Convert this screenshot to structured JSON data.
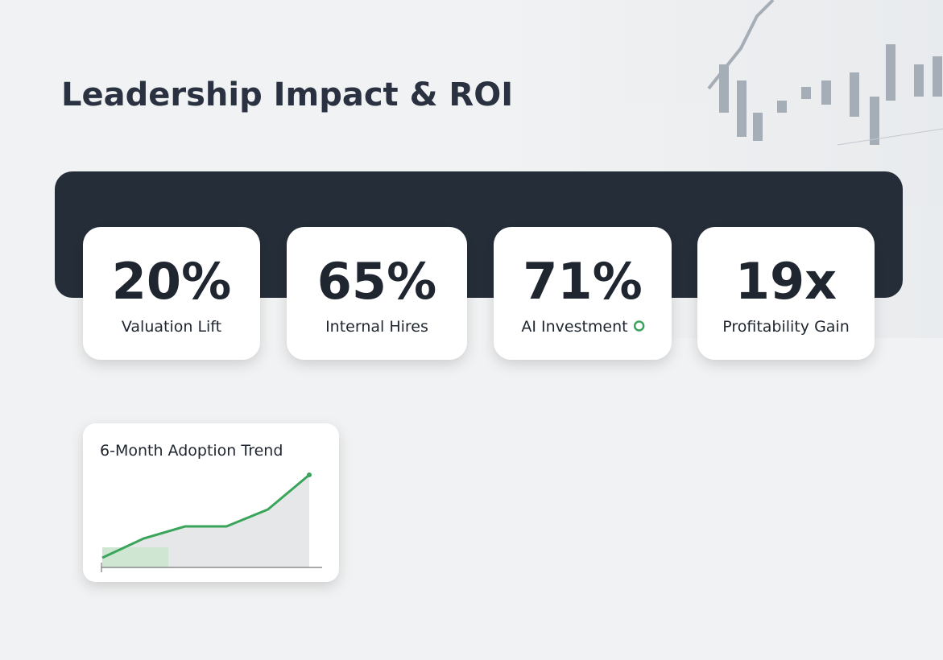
{
  "header": {
    "title": "Leadership Impact & ROI"
  },
  "kpis": [
    {
      "value": "20%",
      "label": "Valuation Lift"
    },
    {
      "value": "65%",
      "label": "Internal Hires"
    },
    {
      "value": "71%",
      "label": "AI Investment"
    },
    {
      "value": "19x",
      "label": "Profitability Gain"
    }
  ],
  "chart_data": {
    "type": "line",
    "title": "6-Month Adoption Trend",
    "categories": [
      null,
      null,
      null,
      null,
      null,
      null
    ],
    "values": [
      12,
      36,
      51,
      51,
      72,
      115
    ],
    "color": "#3aa55a",
    "ylim": [
      0,
      120
    ]
  }
}
